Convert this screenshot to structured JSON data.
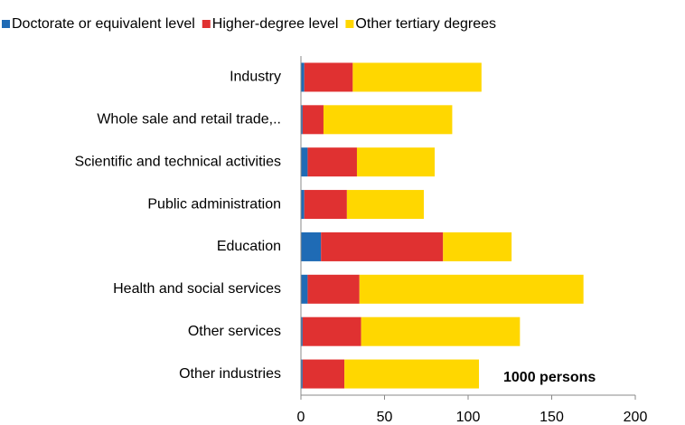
{
  "chart_data": {
    "type": "stacked_barh",
    "annotation": "1000 persons",
    "categories": [
      "Industry",
      "Whole sale and retail trade,..",
      "Scientific and technical activities",
      "Public administration",
      "Education",
      "Health and social services",
      "Other services",
      "Other industries"
    ],
    "series": [
      {
        "name": "Doctorate or equivalent level",
        "color": "#1f6bb5",
        "values": [
          2,
          1,
          4,
          2,
          12,
          4,
          1,
          1
        ]
      },
      {
        "name": "Higher-degree level",
        "color": "#e03131",
        "values": [
          29,
          12.5,
          29.5,
          25.5,
          73,
          31,
          35,
          25
        ]
      },
      {
        "name": "Other tertiary degrees",
        "color": "#ffd700",
        "values": [
          77,
          77,
          46.5,
          46,
          41,
          134,
          95,
          80.5
        ]
      }
    ],
    "xlim": [
      0,
      200
    ],
    "xticks": [
      0,
      50,
      100,
      150,
      200
    ],
    "legend": "top"
  }
}
